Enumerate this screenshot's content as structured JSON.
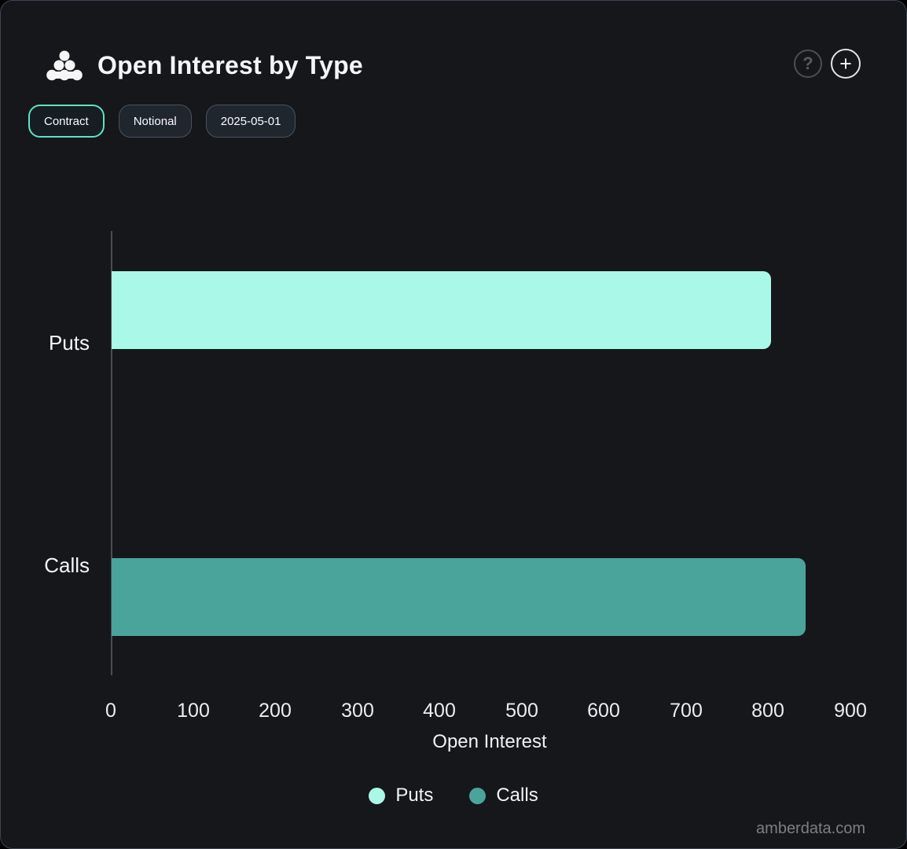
{
  "header": {
    "title": "Open Interest by Type",
    "help_glyph": "?",
    "add_glyph": "+"
  },
  "toolbar": {
    "buttons": [
      {
        "id": "contract",
        "label": "Contract",
        "active": true
      },
      {
        "id": "notional",
        "label": "Notional",
        "active": false
      },
      {
        "id": "date",
        "label": "2025-05-01",
        "active": false
      }
    ]
  },
  "chart_data": {
    "type": "bar",
    "orientation": "horizontal",
    "title": "Open Interest by Type",
    "categories": [
      "Puts",
      "Calls"
    ],
    "series": [
      {
        "name": "Puts",
        "color": "#a9f8e8",
        "values": [
          802,
          0
        ]
      },
      {
        "name": "Calls",
        "color": "#4aa49c",
        "values": [
          0,
          845
        ]
      }
    ],
    "xlabel": "Open Interest",
    "xlim": [
      0,
      900
    ],
    "xticks": [
      0,
      100,
      200,
      300,
      400,
      500,
      600,
      700,
      800,
      900
    ],
    "grid": false,
    "legend_position": "bottom",
    "legend": [
      {
        "label": "Puts",
        "color": "#a9f8e8"
      },
      {
        "label": "Calls",
        "color": "#4aa49c"
      }
    ]
  },
  "watermark": "amberdata.com",
  "colors": {
    "accent": "#5fe3c4",
    "background": "#16171b",
    "border": "#3d4653",
    "puts": "#a9f8e8",
    "calls": "#4aa49c",
    "axis_line": "#4a4e55",
    "muted_text": "#7b7f85"
  }
}
